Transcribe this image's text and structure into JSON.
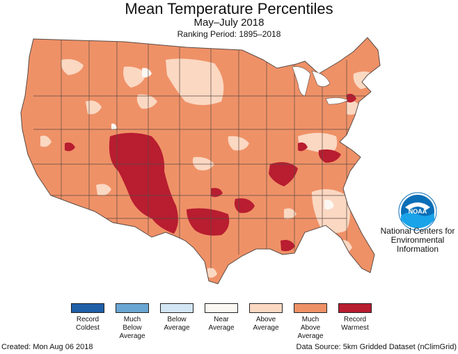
{
  "title": "Mean Temperature Percentiles",
  "subtitle": "May–July 2018",
  "ranking_period": "Ranking Period: 1895–2018",
  "organization": [
    "National Centers for",
    "Environmental",
    "Information"
  ],
  "logo_text": "NOAA",
  "legend": [
    {
      "lines": [
        "Record",
        "Coldest"
      ],
      "color": "#1f5fa8"
    },
    {
      "lines": [
        "Much",
        "Below",
        "Average"
      ],
      "color": "#6aa6d3"
    },
    {
      "lines": [
        "Below",
        "Average"
      ],
      "color": "#d3e6f3"
    },
    {
      "lines": [
        "Near",
        "Average"
      ],
      "color": "#fbf7f2"
    },
    {
      "lines": [
        "Above",
        "Average"
      ],
      "color": "#fbd8c2"
    },
    {
      "lines": [
        "Much",
        "Above",
        "Average"
      ],
      "color": "#ef9167"
    },
    {
      "lines": [
        "Record",
        "Warmest"
      ],
      "color": "#b81d30"
    }
  ],
  "footer": {
    "created": "Created: Mon Aug 06 2018",
    "source": "Data Source: 5km Gridded Dataset (nClimGrid)"
  },
  "colors": {
    "base": "#ef9167",
    "record_warm": "#b81d30",
    "above": "#fbd8c2",
    "near": "#fbf7f2",
    "border": "#5a4a44",
    "logo_blue": "#0b6fb8",
    "logo_wave": "#1aa3e8"
  }
}
